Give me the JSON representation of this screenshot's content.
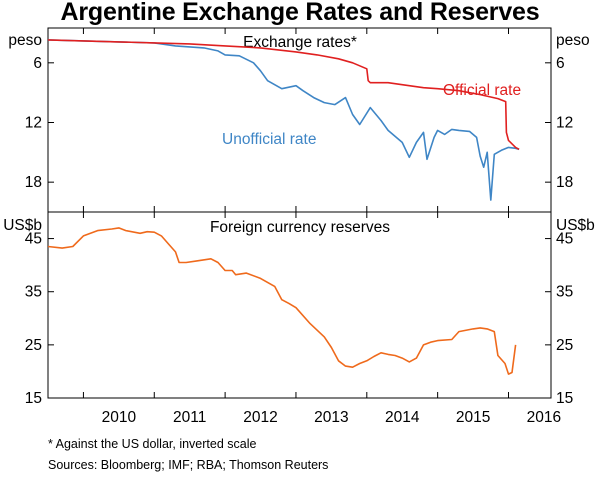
{
  "title": "Argentine Exchange Rates and Reserves",
  "colors": {
    "official": "#e02020",
    "unofficial": "#3f86c6",
    "reserves": "#ef6a1c"
  },
  "footnote": "*     Against the US dollar, inverted scale",
  "sources": "Sources:  Bloomberg; IMF; RBA; Thomson Reuters",
  "chart_data": [
    {
      "type": "line",
      "title": "Exchange rates*",
      "ylabel_left": "peso",
      "ylabel_right": "peso",
      "inverted": true,
      "ylim": [
        2.5,
        21
      ],
      "yticks": [
        6,
        12,
        18
      ],
      "xlim": [
        2009.5,
        2016.6
      ],
      "xticks": [
        "2010",
        "2011",
        "2012",
        "2013",
        "2014",
        "2015",
        "2016"
      ],
      "annotations": [
        "Official rate",
        "Unofficial rate"
      ],
      "series": [
        {
          "name": "Official rate",
          "color": "#e02020",
          "x": [
            2009.5,
            2010.0,
            2010.5,
            2011.0,
            2011.5,
            2012.0,
            2012.5,
            2013.0,
            2013.3,
            2013.6,
            2013.8,
            2014.0,
            2014.02,
            2014.05,
            2014.3,
            2014.5,
            2014.8,
            2015.0,
            2015.3,
            2015.6,
            2015.85,
            2015.96,
            2015.97,
            2016.0,
            2016.1,
            2016.15
          ],
          "values": [
            3.7,
            3.8,
            3.9,
            4.0,
            4.1,
            4.3,
            4.5,
            4.9,
            5.2,
            5.6,
            6.0,
            6.6,
            7.8,
            8.0,
            8.0,
            8.2,
            8.5,
            8.6,
            8.8,
            9.2,
            9.6,
            9.9,
            13.0,
            13.8,
            14.5,
            14.7
          ]
        },
        {
          "name": "Unofficial rate",
          "color": "#3f86c6",
          "x": [
            2009.5,
            2010.0,
            2010.5,
            2011.0,
            2011.3,
            2011.5,
            2011.7,
            2011.9,
            2012.0,
            2012.2,
            2012.4,
            2012.5,
            2012.6,
            2012.8,
            2013.0,
            2013.1,
            2013.25,
            2013.4,
            2013.55,
            2013.7,
            2013.8,
            2013.9,
            2014.05,
            2014.2,
            2014.3,
            2014.5,
            2014.6,
            2014.7,
            2014.8,
            2014.85,
            2014.95,
            2015.0,
            2015.1,
            2015.2,
            2015.3,
            2015.45,
            2015.55,
            2015.6,
            2015.65,
            2015.7,
            2015.75,
            2015.8,
            2015.9,
            2016.0,
            2016.1,
            2016.15
          ],
          "values": [
            3.7,
            3.8,
            3.9,
            4.0,
            4.3,
            4.4,
            4.5,
            4.8,
            5.2,
            5.3,
            6.0,
            6.8,
            7.8,
            8.6,
            8.3,
            8.8,
            9.5,
            10.0,
            10.2,
            9.5,
            11.2,
            12.2,
            10.5,
            11.8,
            12.8,
            14.0,
            15.5,
            14.0,
            13.0,
            15.7,
            13.5,
            12.8,
            13.2,
            12.7,
            12.8,
            12.9,
            13.5,
            15.4,
            16.5,
            15.0,
            19.8,
            15.2,
            14.8,
            14.5,
            14.6,
            14.7
          ]
        }
      ]
    },
    {
      "type": "line",
      "title": "Foreign currency reserves",
      "ylabel_left": "US$b",
      "ylabel_right": "US$b",
      "ylim": [
        15,
        50
      ],
      "yticks": [
        15,
        25,
        35,
        45
      ],
      "xlim": [
        2009.5,
        2016.6
      ],
      "xticks": [
        "2010",
        "2011",
        "2012",
        "2013",
        "2014",
        "2015",
        "2016"
      ],
      "series": [
        {
          "name": "Foreign currency reserves",
          "color": "#ef6a1c",
          "x": [
            2009.5,
            2009.7,
            2009.85,
            2010.0,
            2010.2,
            2010.4,
            2010.5,
            2010.6,
            2010.8,
            2010.9,
            2011.0,
            2011.1,
            2011.2,
            2011.3,
            2011.35,
            2011.45,
            2011.6,
            2011.8,
            2011.9,
            2012.0,
            2012.1,
            2012.15,
            2012.3,
            2012.5,
            2012.7,
            2012.8,
            2012.9,
            2013.0,
            2013.2,
            2013.4,
            2013.5,
            2013.6,
            2013.7,
            2013.8,
            2013.9,
            2014.0,
            2014.1,
            2014.2,
            2014.3,
            2014.4,
            2014.5,
            2014.6,
            2014.7,
            2014.8,
            2014.9,
            2015.0,
            2015.2,
            2015.3,
            2015.5,
            2015.6,
            2015.7,
            2015.8,
            2015.85,
            2015.95,
            2016.0,
            2016.05,
            2016.1
          ],
          "values": [
            43.5,
            43.2,
            43.5,
            45.5,
            46.5,
            46.8,
            47.0,
            46.5,
            46.0,
            46.3,
            46.2,
            45.5,
            44.0,
            42.5,
            40.5,
            40.5,
            40.8,
            41.2,
            40.5,
            39.0,
            39.0,
            38.2,
            38.5,
            37.5,
            36.0,
            33.5,
            32.8,
            32.0,
            29.0,
            26.5,
            24.5,
            22.0,
            21.0,
            20.8,
            21.5,
            22.0,
            22.8,
            23.5,
            23.2,
            23.0,
            22.5,
            21.8,
            22.5,
            25.0,
            25.5,
            25.8,
            26.0,
            27.5,
            28.0,
            28.2,
            28.0,
            27.5,
            23.0,
            21.5,
            19.5,
            19.8,
            25.0
          ]
        }
      ]
    }
  ]
}
